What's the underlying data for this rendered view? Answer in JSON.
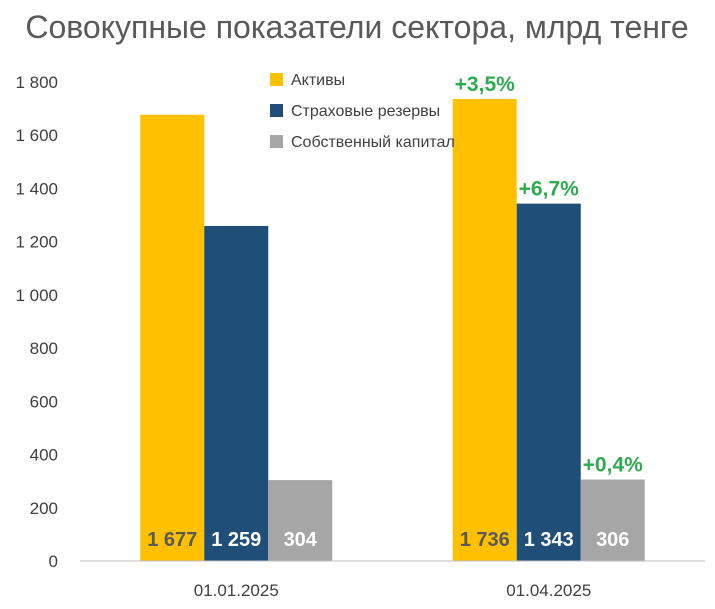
{
  "chart_data": {
    "type": "bar",
    "title": "Совокупные показатели сектора, млрд тенге",
    "categories": [
      "01.01.2025",
      "01.04.2025"
    ],
    "ylim": [
      0,
      1800
    ],
    "yticks": [
      0,
      200,
      400,
      600,
      800,
      1000,
      1200,
      1400,
      1600,
      1800
    ],
    "ytick_labels": [
      "0",
      "200",
      "400",
      "600",
      "800",
      "1 000",
      "1 200",
      "1 400",
      "1 600",
      "1 800"
    ],
    "grid": false,
    "legend_position": "top-center",
    "series": [
      {
        "name": "Активы",
        "color": "#ffc000",
        "label_color": "#595959",
        "values": [
          1677,
          1736
        ],
        "value_labels": [
          "1 677",
          "1 736"
        ],
        "change_labels": [
          "",
          "+3,5%"
        ]
      },
      {
        "name": "Страховые резервы",
        "color": "#1f4e79",
        "label_color": "#ffffff",
        "values": [
          1259,
          1343
        ],
        "value_labels": [
          "1 259",
          "1 343"
        ],
        "change_labels": [
          "",
          "+6,7%"
        ]
      },
      {
        "name": "Собственный капитал",
        "color": "#a6a6a6",
        "label_color": "#ffffff",
        "values": [
          304,
          306
        ],
        "value_labels": [
          "304",
          "306"
        ],
        "change_labels": [
          "",
          "+0,4%"
        ]
      }
    ]
  }
}
